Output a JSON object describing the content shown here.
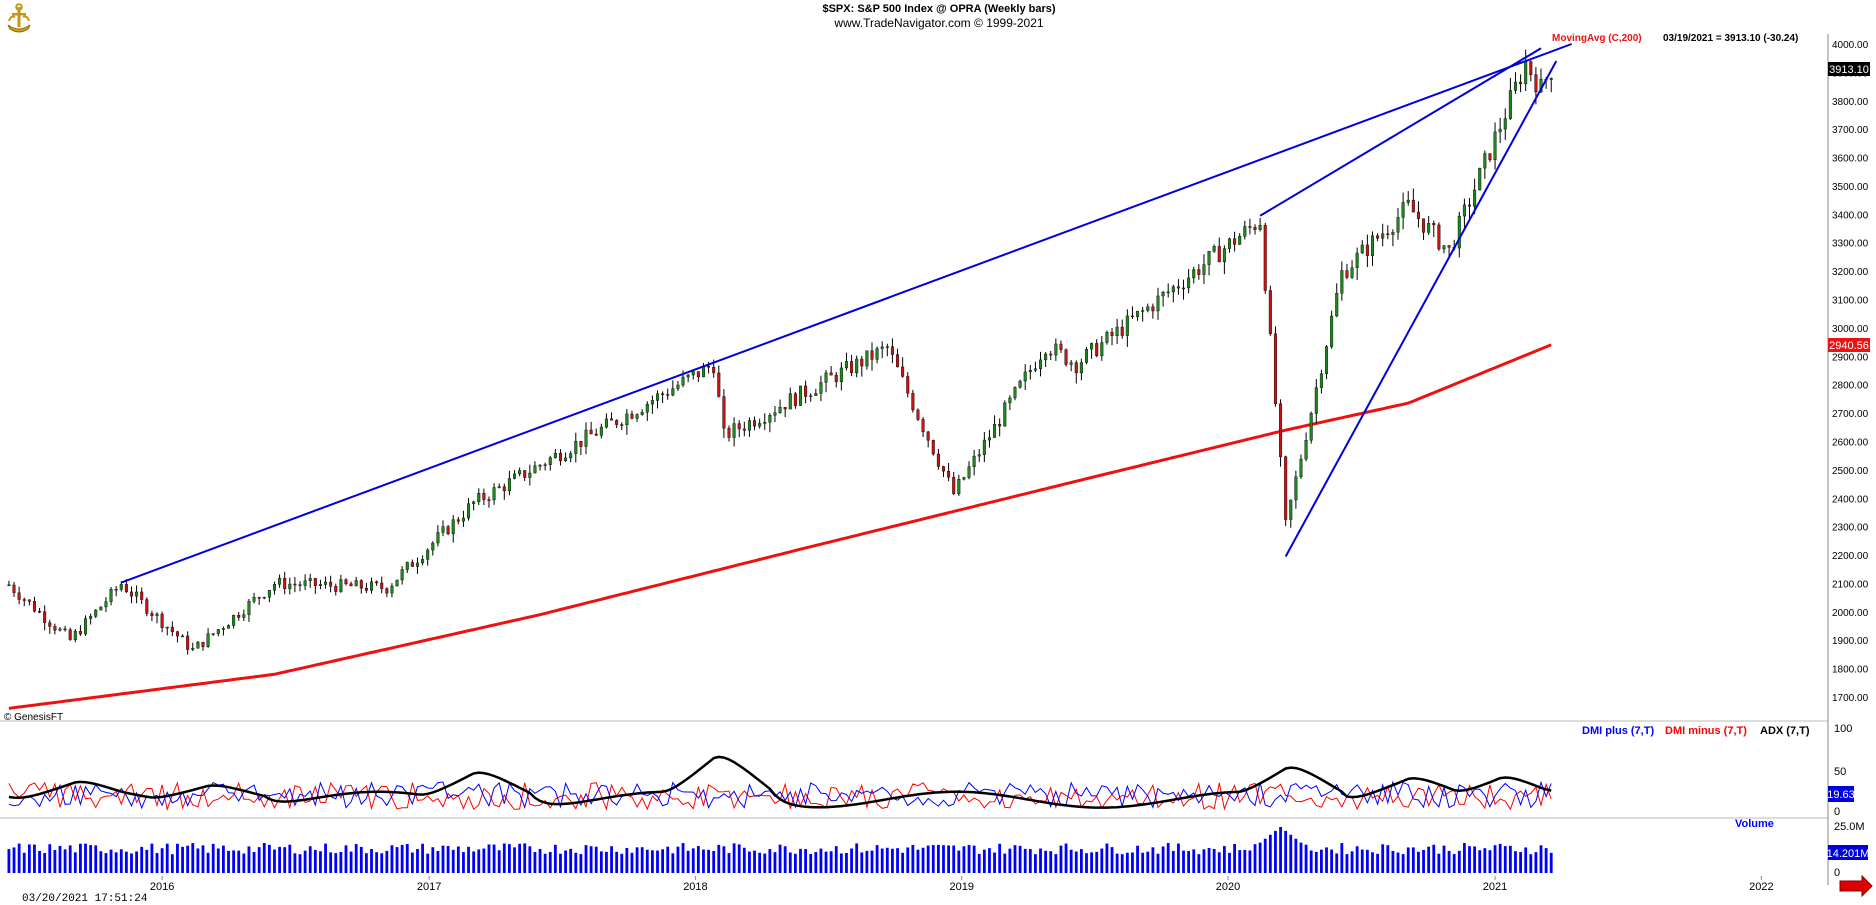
{
  "header": {
    "title": "$SPX:  S&P 500 Index @ OPRA  (Weekly bars)",
    "subtitle": "www.TradeNavigator.com © 1999-2021"
  },
  "price_panel": {
    "ma_label": "MovingAvg (C,200)",
    "last_readout": "03/19/2021 = 3913.10 (-30.24)",
    "last_price_tag": "3913.10",
    "ma_tag": "2940.56",
    "watermark": "© GenesisFT",
    "y_ticks": [
      "1700.00",
      "1800.00",
      "1900.00",
      "2000.00",
      "2100.00",
      "2200.00",
      "2300.00",
      "2400.00",
      "2500.00",
      "2600.00",
      "2700.00",
      "2800.00",
      "2900.00",
      "3000.00",
      "3100.00",
      "3200.00",
      "3300.00",
      "3400.00",
      "3500.00",
      "3600.00",
      "3700.00",
      "3800.00",
      "3900.00",
      "4000.00"
    ]
  },
  "dmi_panel": {
    "plus_label": "DMI plus (7,T)",
    "minus_label": "DMI minus (7,T)",
    "adx_label": "ADX (7,T)",
    "y_ticks": [
      "100",
      "50",
      "0"
    ],
    "last_tag": "19.63"
  },
  "volume_panel": {
    "label": "Volume",
    "y_ticks": [
      "25.0M",
      "0"
    ],
    "last_tag": "14.201M"
  },
  "x_axis": {
    "labels": [
      "2016",
      "2017",
      "2018",
      "2019",
      "2020",
      "2021",
      "2022"
    ]
  },
  "footer": {
    "timestamp": "03/20/2021 17:51:24"
  },
  "colors": {
    "up": "#1a8a1a",
    "down": "#cc1111",
    "ma": "#ee1111",
    "trend": "#0000dd",
    "dmi_plus": "#0000ff",
    "dmi_minus": "#ff0000",
    "adx": "#000000",
    "volume": "#0000ff"
  },
  "icons": {
    "logo": "ship-anchor-logo-icon",
    "scroll": "scroll-right-arrow-icon"
  },
  "chart_data": {
    "type": "candlestick",
    "title": "$SPX:  S&P 500 Index @ OPRA  (Weekly bars)",
    "timeframe": "weekly",
    "x_range": [
      "2015-06-01",
      "2022-04-01"
    ],
    "ylim": [
      1650,
      4050
    ],
    "key_points": [
      {
        "date": "2015-06-05",
        "close": 2095
      },
      {
        "date": "2015-08-28",
        "close": 1900
      },
      {
        "date": "2015-11-06",
        "close": 2099
      },
      {
        "date": "2016-02-12",
        "close": 1865
      },
      {
        "date": "2016-06-03",
        "close": 2100
      },
      {
        "date": "2016-11-04",
        "close": 2085
      },
      {
        "date": "2017-03-03",
        "close": 2383
      },
      {
        "date": "2018-01-26",
        "close": 2872
      },
      {
        "date": "2018-02-09",
        "close": 2620
      },
      {
        "date": "2018-09-21",
        "close": 2930
      },
      {
        "date": "2018-12-21",
        "close": 2416
      },
      {
        "date": "2019-04-26",
        "close": 2940
      },
      {
        "date": "2019-06-07",
        "close": 2873
      },
      {
        "date": "2020-02-14",
        "close": 3380
      },
      {
        "date": "2020-03-20",
        "close": 2304
      },
      {
        "date": "2020-06-05",
        "close": 3193
      },
      {
        "date": "2020-09-04",
        "close": 3427
      },
      {
        "date": "2020-10-30",
        "close": 3270
      },
      {
        "date": "2021-02-12",
        "close": 3934
      },
      {
        "date": "2021-03-05",
        "close": 3842
      },
      {
        "date": "2021-03-19",
        "close": 3913.1
      }
    ],
    "moving_average": {
      "name": "MovingAvg (C,200)",
      "points": [
        {
          "date": "2015-06-05",
          "value": 1660
        },
        {
          "date": "2016-06-03",
          "value": 1780
        },
        {
          "date": "2017-06-02",
          "value": 1990
        },
        {
          "date": "2018-06-01",
          "value": 2225
        },
        {
          "date": "2019-06-07",
          "value": 2460
        },
        {
          "date": "2020-03-20",
          "value": 2640
        },
        {
          "date": "2020-09-04",
          "value": 2735
        },
        {
          "date": "2021-03-19",
          "value": 2940.56
        }
      ]
    },
    "trendlines": [
      {
        "from": {
          "date": "2015-11-06",
          "value": 2103
        },
        "to": {
          "date": "2021-04-16",
          "value": 4000
        }
      },
      {
        "from": {
          "date": "2020-02-14",
          "value": 3395
        },
        "to": {
          "date": "2021-03-05",
          "value": 3985
        }
      },
      {
        "from": {
          "date": "2020-03-20",
          "value": 2195
        },
        "to": {
          "date": "2021-03-26",
          "value": 3940
        }
      }
    ],
    "dmi": {
      "range": [
        0,
        100
      ],
      "last": 19.63,
      "adx_peaks": [
        {
          "date": "2015-09-04",
          "value": 40
        },
        {
          "date": "2016-03-04",
          "value": 35
        },
        {
          "date": "2017-03-03",
          "value": 53
        },
        {
          "date": "2018-01-26",
          "value": 75
        },
        {
          "date": "2020-03-20",
          "value": 60
        },
        {
          "date": "2020-09-04",
          "value": 45
        },
        {
          "date": "2021-01-08",
          "value": 46
        }
      ]
    },
    "volume": {
      "range": [
        0,
        25000000
      ],
      "last": 14201000,
      "spike": {
        "date": "2020-03-13",
        "value": 24500000
      }
    }
  }
}
